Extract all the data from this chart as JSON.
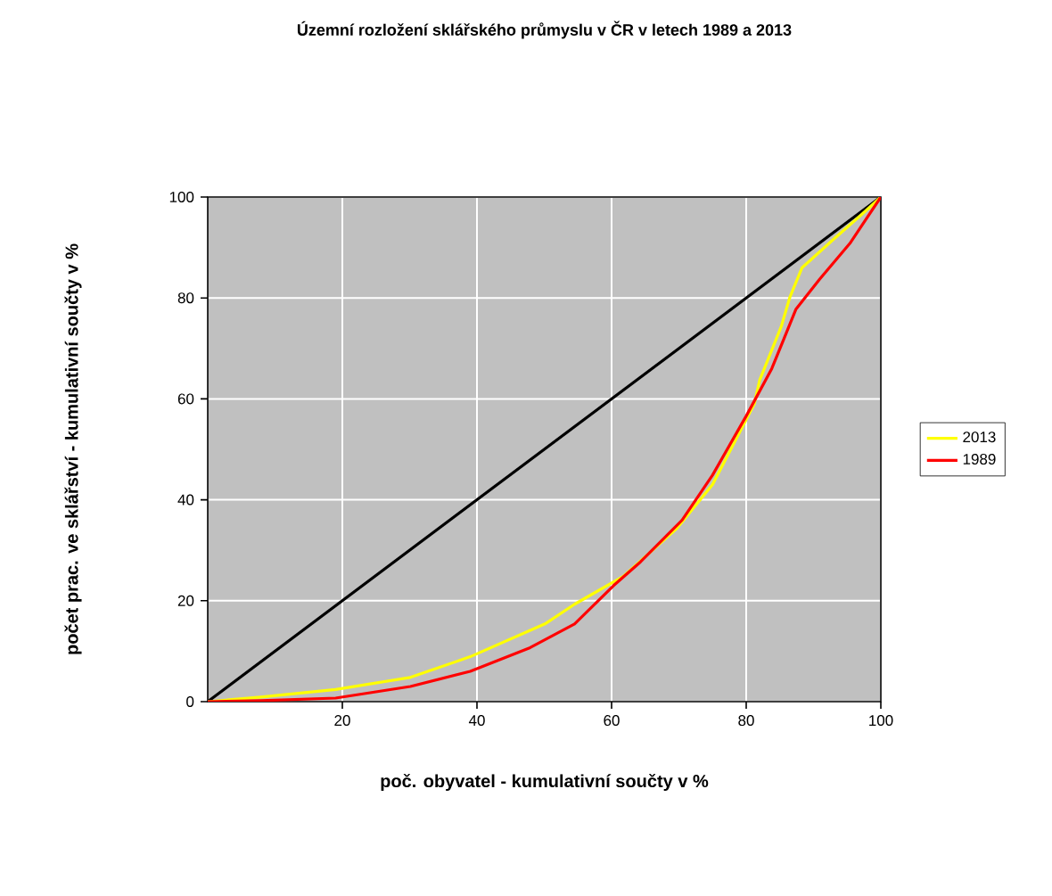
{
  "chart_data": {
    "type": "line",
    "title": "Územní rozložení sklářského průmyslu v ČR v letech 1989 a 2013",
    "xlabel": "poč. obyvatel - kumulativní součty v %",
    "ylabel": "počet prac. ve sklářství - kumulativní součty v %",
    "xlim": [
      0,
      100
    ],
    "ylim": [
      0,
      100
    ],
    "xticks": [
      20,
      40,
      60,
      80,
      100
    ],
    "yticks": [
      0,
      20,
      40,
      60,
      80,
      100
    ],
    "grid": true,
    "legend": "right",
    "marker": "none",
    "line_style": "solid",
    "series": [
      {
        "color": "#000000",
        "x": [
          0,
          100
        ],
        "values": [
          0,
          100
        ]
      },
      {
        "name": "2013",
        "color": "#ffff00",
        "x": [
          0,
          7.9,
          19,
          30.1,
          39,
          50.1,
          54.5,
          61.7,
          69.6,
          75,
          81.2,
          82,
          85.2,
          86.5,
          88.3,
          92.7,
          97.2,
          100
        ],
        "values": [
          0,
          0.9,
          2.4,
          4.8,
          8.9,
          15.4,
          19.3,
          24.8,
          34.2,
          43,
          59,
          63.7,
          74.3,
          80.2,
          86,
          91.3,
          96.6,
          100
        ]
      },
      {
        "name": "1989",
        "color": "#ff0000",
        "x": [
          0,
          7.9,
          19,
          30.1,
          39,
          47.9,
          54.5,
          60.3,
          64.3,
          70.5,
          75,
          80,
          83.8,
          85.6,
          87.4,
          90.9,
          95.4,
          100
        ],
        "values": [
          0,
          0.2,
          0.7,
          3,
          6,
          10.7,
          15.4,
          23,
          27.7,
          36,
          44.9,
          56.6,
          66,
          71.9,
          77.8,
          83.7,
          90.8,
          100
        ]
      }
    ]
  }
}
